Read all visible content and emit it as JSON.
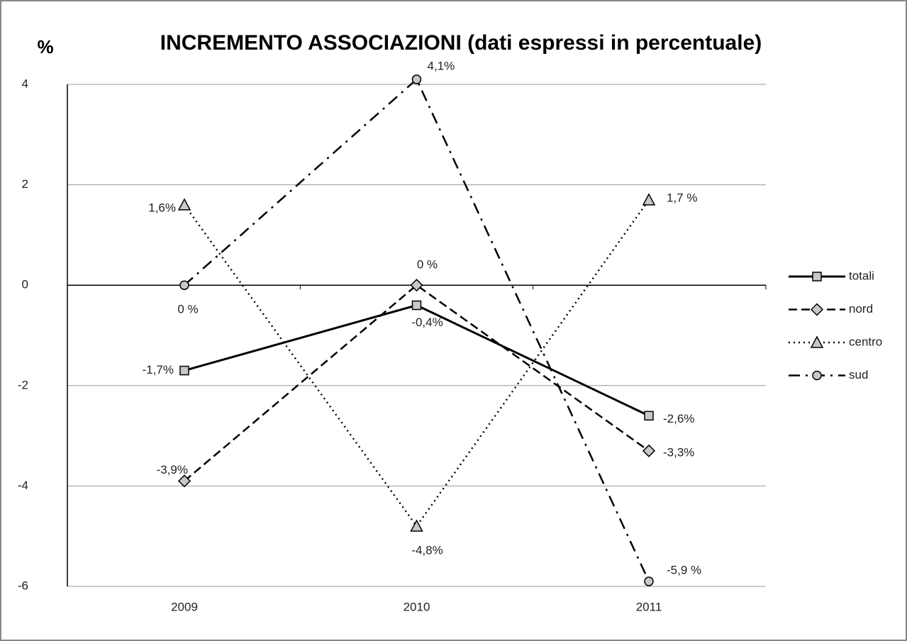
{
  "chart_data": {
    "type": "line",
    "title": "INCREMENTO ASSOCIAZIONI (dati espressi in percentuale)",
    "y_label": "%",
    "categories": [
      "2009",
      "2010",
      "2011"
    ],
    "ylim": [
      -6,
      4
    ],
    "yticks": [
      -6,
      -4,
      -2,
      0,
      2,
      4
    ],
    "grid": true,
    "legend": "right",
    "series": [
      {
        "name": "totali",
        "color": "#000000",
        "marker": "square",
        "line_style": "solid",
        "values": [
          -1.7,
          -0.4,
          -2.6
        ],
        "value_labels": [
          "-1,7%",
          "-0,4%",
          "-2,6%"
        ]
      },
      {
        "name": "nord",
        "color": "#000000",
        "marker": "diamond",
        "line_style": "dashed",
        "values": [
          -3.9,
          0,
          -3.3
        ],
        "value_labels": [
          "-3,9%",
          "0 %",
          "-3,3%"
        ]
      },
      {
        "name": "centro",
        "color": "#000000",
        "marker": "triangle",
        "line_style": "dotted",
        "values": [
          1.6,
          -4.8,
          1.7
        ],
        "value_labels": [
          "1,6%",
          "-4,8%",
          "1,7 %"
        ]
      },
      {
        "name": "sud",
        "color": "#000000",
        "marker": "circle",
        "line_style": "dashdot",
        "values": [
          0,
          4.1,
          -5.9
        ],
        "value_labels": [
          "0 %",
          "4,1%",
          "-5,9 %"
        ]
      }
    ]
  }
}
